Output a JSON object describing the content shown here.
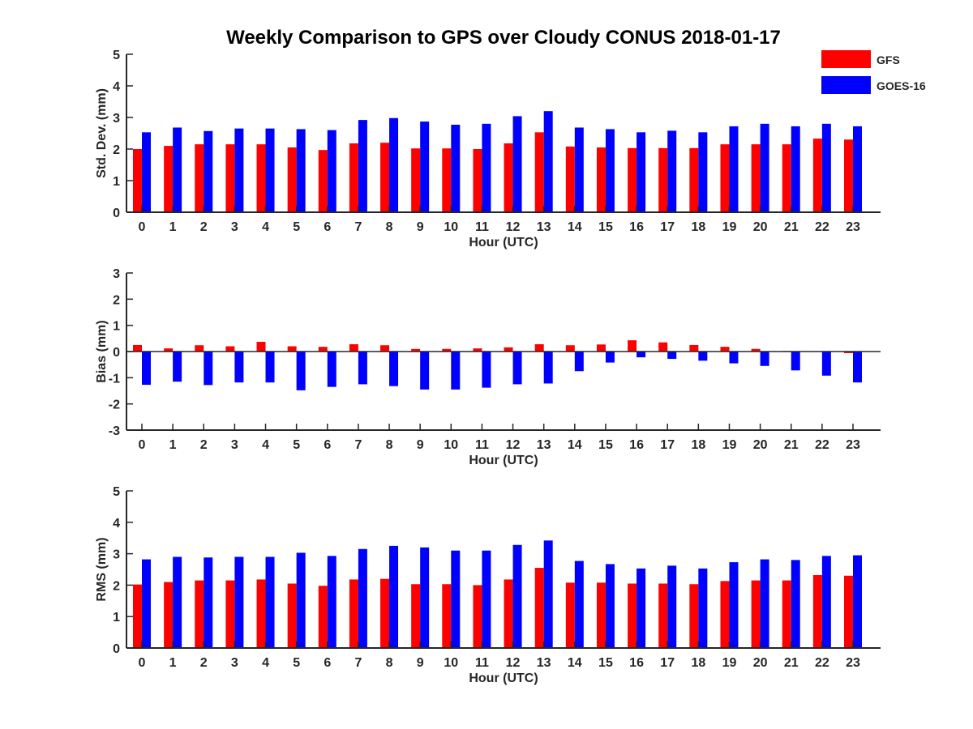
{
  "title": "Weekly Comparison to GPS over Cloudy CONUS 2018-01-17",
  "legend": {
    "position": "top-right",
    "entries": [
      {
        "name": "GFS",
        "color": "#ff0000"
      },
      {
        "name": "GOES-16",
        "color": "#0000ff"
      }
    ]
  },
  "chart_data": [
    {
      "type": "bar",
      "xlabel": "Hour (UTC)",
      "ylabel": "Std. Dev. (mm)",
      "ylim": [
        0,
        5
      ],
      "yticks": [
        0,
        1,
        2,
        3,
        4,
        5
      ],
      "grid": false,
      "categories": [
        "0",
        "1",
        "2",
        "3",
        "4",
        "5",
        "6",
        "7",
        "8",
        "9",
        "10",
        "11",
        "12",
        "13",
        "14",
        "15",
        "16",
        "17",
        "18",
        "19",
        "20",
        "21",
        "22",
        "23"
      ],
      "series": [
        {
          "name": "GFS",
          "color": "#ff0000",
          "values": [
            2.0,
            2.1,
            2.15,
            2.15,
            2.15,
            2.05,
            1.97,
            2.18,
            2.2,
            2.02,
            2.02,
            2.0,
            2.18,
            2.53,
            2.08,
            2.05,
            2.03,
            2.03,
            2.03,
            2.15,
            2.15,
            2.15,
            2.33,
            2.3
          ]
        },
        {
          "name": "GOES-16",
          "color": "#0000ff",
          "values": [
            2.53,
            2.68,
            2.57,
            2.65,
            2.65,
            2.63,
            2.6,
            2.92,
            2.98,
            2.87,
            2.77,
            2.8,
            3.04,
            3.2,
            2.68,
            2.63,
            2.53,
            2.58,
            2.53,
            2.72,
            2.8,
            2.72,
            2.8,
            2.72
          ]
        }
      ]
    },
    {
      "type": "bar",
      "xlabel": "Hour (UTC)",
      "ylabel": "Bias (mm)",
      "ylim": [
        -3,
        3
      ],
      "yticks": [
        -3,
        -2,
        -1,
        0,
        1,
        2,
        3
      ],
      "grid": false,
      "categories": [
        "0",
        "1",
        "2",
        "3",
        "4",
        "5",
        "6",
        "7",
        "8",
        "9",
        "10",
        "11",
        "12",
        "13",
        "14",
        "15",
        "16",
        "17",
        "18",
        "19",
        "20",
        "21",
        "22",
        "23"
      ],
      "series": [
        {
          "name": "GFS",
          "color": "#ff0000",
          "values": [
            0.25,
            0.12,
            0.24,
            0.2,
            0.37,
            0.2,
            0.18,
            0.28,
            0.24,
            0.1,
            0.1,
            0.12,
            0.16,
            0.28,
            0.24,
            0.27,
            0.43,
            0.35,
            0.25,
            0.18,
            0.1,
            0.02,
            0.0,
            -0.06
          ]
        },
        {
          "name": "GOES-16",
          "color": "#0000ff",
          "values": [
            -1.27,
            -1.15,
            -1.28,
            -1.18,
            -1.18,
            -1.48,
            -1.35,
            -1.25,
            -1.32,
            -1.45,
            -1.45,
            -1.38,
            -1.25,
            -1.22,
            -0.75,
            -0.42,
            -0.22,
            -0.28,
            -0.35,
            -0.45,
            -0.55,
            -0.72,
            -0.92,
            -1.18
          ]
        }
      ]
    },
    {
      "type": "bar",
      "xlabel": "Hour (UTC)",
      "ylabel": "RMS (mm)",
      "ylim": [
        0,
        5
      ],
      "yticks": [
        0,
        1,
        2,
        3,
        4,
        5
      ],
      "grid": false,
      "categories": [
        "0",
        "1",
        "2",
        "3",
        "4",
        "5",
        "6",
        "7",
        "8",
        "9",
        "10",
        "11",
        "12",
        "13",
        "14",
        "15",
        "16",
        "17",
        "18",
        "19",
        "20",
        "21",
        "22",
        "23"
      ],
      "series": [
        {
          "name": "GFS",
          "color": "#ff0000",
          "values": [
            2.02,
            2.1,
            2.15,
            2.15,
            2.18,
            2.05,
            1.98,
            2.18,
            2.2,
            2.03,
            2.03,
            2.0,
            2.18,
            2.55,
            2.08,
            2.08,
            2.05,
            2.05,
            2.03,
            2.13,
            2.15,
            2.15,
            2.32,
            2.3
          ]
        },
        {
          "name": "GOES-16",
          "color": "#0000ff",
          "values": [
            2.82,
            2.9,
            2.88,
            2.9,
            2.9,
            3.03,
            2.93,
            3.15,
            3.25,
            3.2,
            3.1,
            3.1,
            3.28,
            3.42,
            2.77,
            2.67,
            2.53,
            2.62,
            2.53,
            2.73,
            2.82,
            2.8,
            2.93,
            2.95
          ]
        }
      ]
    }
  ]
}
